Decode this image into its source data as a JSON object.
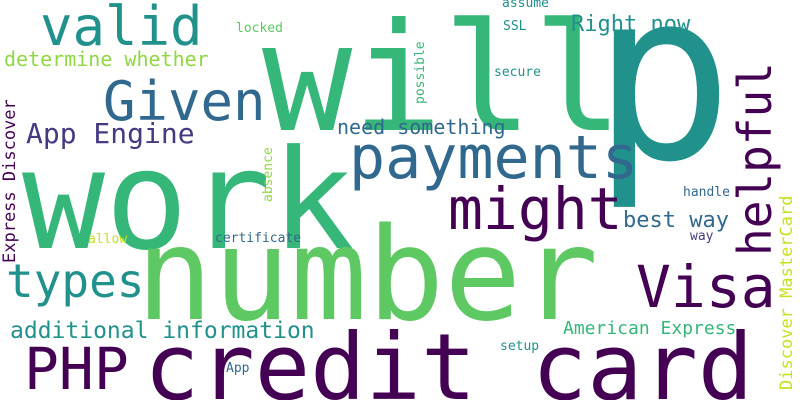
{
  "words": {
    "p": "p",
    "will": "will",
    "work": "work",
    "number": "number",
    "credit_card": "credit card",
    "payments": "payments",
    "might": "might",
    "given": "Given",
    "valid": "valid",
    "helpful": "helpful",
    "visa": "Visa",
    "types": "types",
    "php": "PHP",
    "app_engine": "App Engine",
    "determine_whether": "determine whether",
    "need_something": "need something",
    "right_now": "Right now",
    "best_way": "best way",
    "additional_information": "additional information",
    "american_express": "American Express",
    "express_discover": "Express Discover",
    "discover_mastercard": "Discover MasterCard",
    "assume": "assume",
    "ssl": "SSL",
    "locked": "locked",
    "possible": "possible",
    "secure": "secure",
    "absence": "absence",
    "handle": "handle",
    "certificate": "certificate",
    "allow": "allow",
    "way": "way",
    "setup": "setup",
    "app": "App"
  },
  "colors": {
    "dark_purple": "#440154",
    "indigo": "#443a83",
    "blue": "#31688e",
    "teal": "#21918c",
    "green": "#35b779",
    "light_green": "#5ec962",
    "yellow_green": "#90d743",
    "yellow": "#c8e020"
  }
}
